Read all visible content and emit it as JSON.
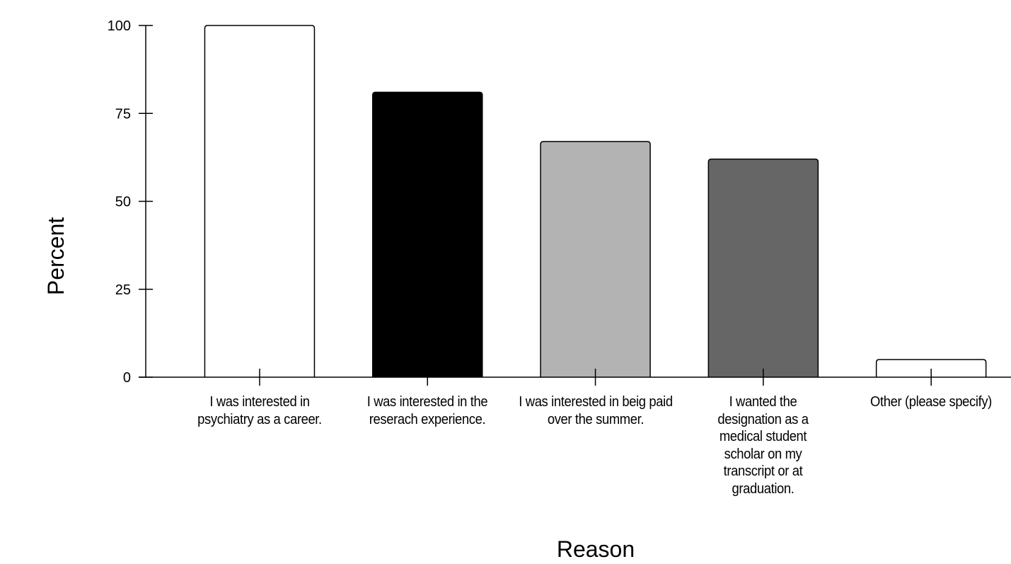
{
  "chart_data": {
    "type": "bar",
    "x_label": "Reason",
    "y_label": "Percent",
    "categories": [
      "I was interested in psychiatry as a career.",
      "I was interested in the reserach experience.",
      "I was interested in beig paid over the summer.",
      "I wanted the designation as a medical student scholar on my transcript or at graduation.",
      "Other (please specify)"
    ],
    "values": [
      100,
      81,
      67,
      62,
      5
    ],
    "colors": [
      "#ffffff",
      "#000000",
      "#b3b3b3",
      "#666666",
      "#ffffff"
    ],
    "ylim": [
      0,
      100
    ],
    "yticks": [
      0,
      25,
      50,
      75,
      100
    ],
    "grid": false
  }
}
